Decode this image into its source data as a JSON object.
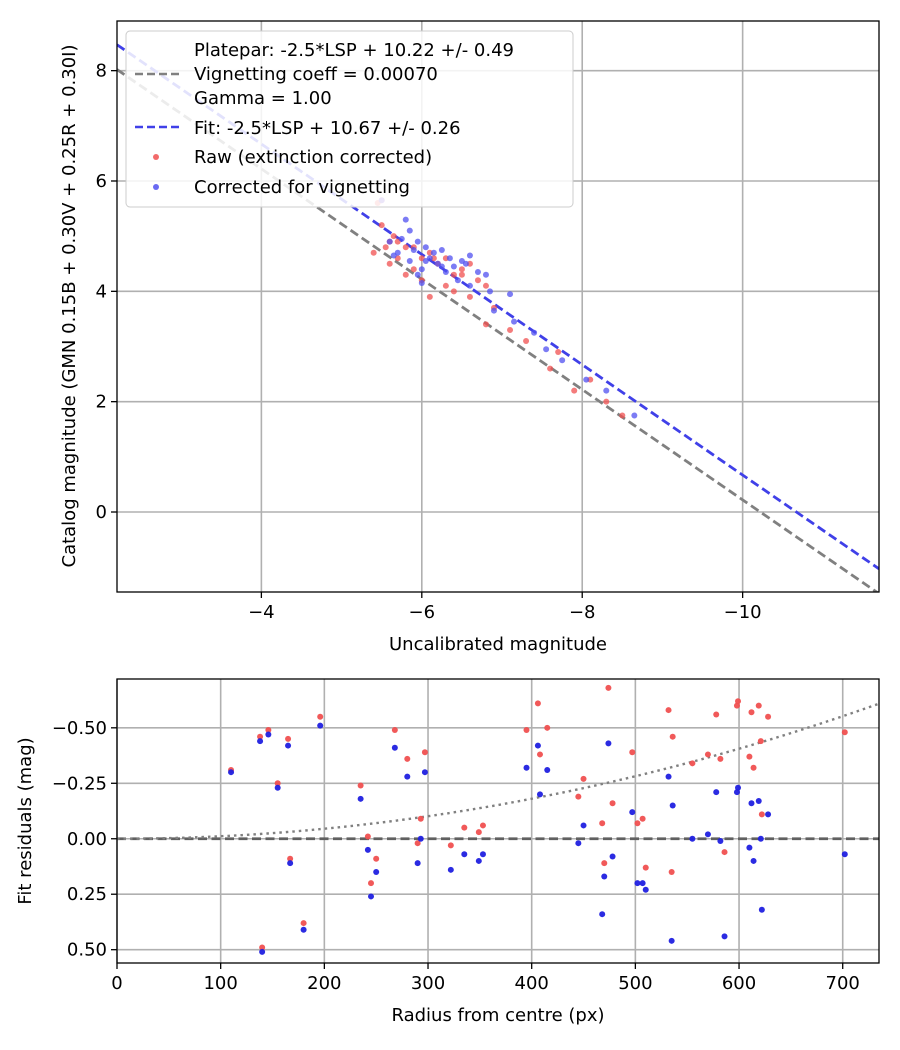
{
  "chart_data": [
    {
      "type": "scatter",
      "xlabel": "Uncalibrated magnitude",
      "ylabel": "Catalog magnitude (GMN 0.15B + 0.30V + 0.25R + 0.30I)",
      "xlim": [
        -2.2,
        -11.7
      ],
      "ylim": [
        8.9,
        -1.45
      ],
      "x_inverted": true,
      "y_inverted": true,
      "grid": true,
      "xticks": [
        -4,
        -6,
        -8,
        -10
      ],
      "xtick_labels": [
        "−4",
        "−6",
        "−8",
        "−10"
      ],
      "yticks": [
        0,
        2,
        4,
        6,
        8
      ],
      "ytick_labels": [
        "0",
        "2",
        "4",
        "6",
        "8"
      ],
      "legend_position": "top-left",
      "legend": {
        "platepar_lines": [
          "Platepar: -2.5*LSP + 10.22 +/- 0.49",
          "Vignetting coeff = 0.00070",
          "Gamma = 1.00"
        ],
        "fit": "Fit: -2.5*LSP + 10.67 +/- 0.26",
        "raw": "Raw (extinction corrected)",
        "corrected": "Corrected for vignetting"
      },
      "lines": [
        {
          "name": "Platepar",
          "slope": 1.0,
          "intercept": 10.22,
          "color": "#808080",
          "style": "dashed"
        },
        {
          "name": "Fit",
          "slope": 1.0,
          "intercept": 10.67,
          "color": "#4040e8",
          "style": "dashed"
        }
      ],
      "series": [
        {
          "name": "Raw (extinction corrected)",
          "color": "#f05050",
          "points": [
            [
              -8.5,
              1.75
            ],
            [
              -8.3,
              2.0
            ],
            [
              -7.9,
              2.2
            ],
            [
              -8.1,
              2.4
            ],
            [
              -7.6,
              2.6
            ],
            [
              -7.7,
              2.9
            ],
            [
              -7.3,
              3.1
            ],
            [
              -7.1,
              3.3
            ],
            [
              -6.8,
              3.4
            ],
            [
              -6.9,
              3.7
            ],
            [
              -6.6,
              3.9
            ],
            [
              -6.4,
              4.0
            ],
            [
              -6.7,
              4.2
            ],
            [
              -6.5,
              4.3
            ],
            [
              -6.3,
              4.1
            ],
            [
              -6.1,
              3.9
            ],
            [
              -6.0,
              4.2
            ],
            [
              -5.9,
              4.4
            ],
            [
              -5.8,
              4.3
            ],
            [
              -5.7,
              4.6
            ],
            [
              -5.6,
              4.5
            ],
            [
              -5.55,
              4.8
            ],
            [
              -5.4,
              4.7
            ],
            [
              -5.5,
              5.2
            ],
            [
              -5.6,
              4.9
            ],
            [
              -5.7,
              4.9
            ],
            [
              -5.9,
              4.8
            ],
            [
              -6.0,
              4.6
            ],
            [
              -6.2,
              4.5
            ],
            [
              -6.3,
              4.6
            ],
            [
              -6.5,
              4.4
            ],
            [
              -6.8,
              4.1
            ],
            [
              -5.45,
              5.6
            ],
            [
              -5.5,
              5.65
            ],
            [
              -6.1,
              4.7
            ],
            [
              -5.65,
              5.0
            ],
            [
              -6.6,
              4.5
            ],
            [
              -5.8,
              4.8
            ],
            [
              -6.4,
              4.3
            ],
            [
              -6.15,
              4.6
            ]
          ]
        },
        {
          "name": "Corrected for vignetting",
          "color": "#5050f0",
          "points": [
            [
              -8.65,
              1.75
            ],
            [
              -8.3,
              2.2
            ],
            [
              -8.05,
              2.4
            ],
            [
              -7.75,
              2.75
            ],
            [
              -7.55,
              2.95
            ],
            [
              -7.4,
              3.25
            ],
            [
              -7.15,
              3.45
            ],
            [
              -6.9,
              3.65
            ],
            [
              -6.85,
              4.0
            ],
            [
              -7.1,
              3.95
            ],
            [
              -6.6,
              4.1
            ],
            [
              -6.7,
              4.35
            ],
            [
              -6.45,
              4.2
            ],
            [
              -6.3,
              4.35
            ],
            [
              -6.55,
              4.5
            ],
            [
              -6.2,
              4.5
            ],
            [
              -6.0,
              4.4
            ],
            [
              -5.85,
              4.55
            ],
            [
              -5.7,
              4.7
            ],
            [
              -5.9,
              4.75
            ],
            [
              -6.05,
              4.8
            ],
            [
              -5.75,
              4.95
            ],
            [
              -5.6,
              4.9
            ],
            [
              -6.1,
              4.6
            ],
            [
              -6.35,
              4.6
            ],
            [
              -6.5,
              4.55
            ],
            [
              -5.95,
              4.9
            ],
            [
              -6.15,
              4.7
            ],
            [
              -5.5,
              5.65
            ],
            [
              -5.8,
              5.3
            ],
            [
              -6.0,
              4.15
            ],
            [
              -6.4,
              4.45
            ],
            [
              -5.65,
              4.65
            ],
            [
              -6.25,
              4.75
            ],
            [
              -6.8,
              4.3
            ],
            [
              -5.85,
              5.1
            ],
            [
              -6.05,
              4.55
            ],
            [
              -6.6,
              4.65
            ],
            [
              -5.95,
              4.3
            ],
            [
              -6.25,
              4.45
            ]
          ]
        }
      ]
    },
    {
      "type": "scatter",
      "xlabel": "Radius from centre (px)",
      "ylabel": "Fit residuals (mag)",
      "xlim": [
        0,
        735
      ],
      "ylim": [
        -0.72,
        0.56
      ],
      "grid": true,
      "xticks": [
        0,
        100,
        200,
        300,
        400,
        500,
        600,
        700
      ],
      "xtick_labels": [
        "0",
        "100",
        "200",
        "300",
        "400",
        "500",
        "600",
        "700"
      ],
      "yticks": [
        0.5,
        0.25,
        0.0,
        -0.25,
        -0.5
      ],
      "ytick_labels": [
        "0.50",
        "0.25",
        "0.00",
        "−0.25",
        "−0.50"
      ],
      "lines": [
        {
          "name": "Zero",
          "type": "hline",
          "y": 0.0,
          "color": "#606060",
          "style": "dashed"
        },
        {
          "name": "Vignetting curve",
          "type": "curve",
          "coeff": 0.0007,
          "color": "#808080",
          "style": "dotted"
        }
      ],
      "series": [
        {
          "name": "Raw (extinction corrected)",
          "color": "#f05050",
          "points": [
            [
              110,
              -0.31
            ],
            [
              138,
              -0.46
            ],
            [
              140,
              0.49
            ],
            [
              146,
              -0.49
            ],
            [
              155,
              -0.25
            ],
            [
              165,
              -0.45
            ],
            [
              167,
              0.09
            ],
            [
              180,
              0.38
            ],
            [
              196,
              -0.55
            ],
            [
              235,
              -0.24
            ],
            [
              242,
              -0.01
            ],
            [
              245,
              0.2
            ],
            [
              250,
              0.09
            ],
            [
              268,
              -0.49
            ],
            [
              280,
              -0.36
            ],
            [
              290,
              0.02
            ],
            [
              293,
              -0.09
            ],
            [
              297,
              -0.39
            ],
            [
              322,
              0.03
            ],
            [
              335,
              -0.05
            ],
            [
              349,
              -0.03
            ],
            [
              353,
              -0.06
            ],
            [
              395,
              -0.49
            ],
            [
              406,
              -0.61
            ],
            [
              408,
              -0.38
            ],
            [
              415,
              -0.5
            ],
            [
              445,
              -0.19
            ],
            [
              450,
              -0.27
            ],
            [
              468,
              -0.07
            ],
            [
              470,
              0.11
            ],
            [
              474,
              -0.68
            ],
            [
              478,
              -0.16
            ],
            [
              497,
              -0.39
            ],
            [
              502,
              -0.07
            ],
            [
              507,
              -0.09
            ],
            [
              510,
              0.13
            ],
            [
              532,
              -0.58
            ],
            [
              535,
              0.15
            ],
            [
              536,
              -0.46
            ],
            [
              555,
              -0.34
            ],
            [
              570,
              -0.38
            ],
            [
              578,
              -0.56
            ],
            [
              582,
              -0.36
            ],
            [
              586,
              0.06
            ],
            [
              598,
              -0.6
            ],
            [
              599,
              -0.62
            ],
            [
              610,
              -0.37
            ],
            [
              612,
              -0.57
            ],
            [
              614,
              -0.32
            ],
            [
              619,
              -0.6
            ],
            [
              621,
              -0.44
            ],
            [
              622,
              -0.11
            ],
            [
              628,
              -0.55
            ],
            [
              702,
              -0.48
            ]
          ]
        },
        {
          "name": "Corrected for vignetting",
          "color": "#2020e0",
          "points": [
            [
              110,
              -0.3
            ],
            [
              138,
              -0.44
            ],
            [
              140,
              0.51
            ],
            [
              146,
              -0.47
            ],
            [
              155,
              -0.23
            ],
            [
              165,
              -0.42
            ],
            [
              167,
              0.11
            ],
            [
              180,
              0.41
            ],
            [
              196,
              -0.51
            ],
            [
              235,
              -0.18
            ],
            [
              242,
              0.05
            ],
            [
              245,
              0.26
            ],
            [
              250,
              0.15
            ],
            [
              268,
              -0.41
            ],
            [
              280,
              -0.28
            ],
            [
              290,
              0.11
            ],
            [
              293,
              0.0
            ],
            [
              297,
              -0.3
            ],
            [
              322,
              0.14
            ],
            [
              335,
              0.07
            ],
            [
              349,
              0.1
            ],
            [
              353,
              0.07
            ],
            [
              395,
              -0.32
            ],
            [
              406,
              -0.42
            ],
            [
              408,
              -0.2
            ],
            [
              415,
              -0.31
            ],
            [
              445,
              0.02
            ],
            [
              450,
              -0.06
            ],
            [
              468,
              0.34
            ],
            [
              470,
              0.17
            ],
            [
              474,
              -0.43
            ],
            [
              478,
              0.08
            ],
            [
              497,
              -0.12
            ],
            [
              502,
              0.2
            ],
            [
              507,
              0.2
            ],
            [
              510,
              0.23
            ],
            [
              532,
              -0.28
            ],
            [
              535,
              0.46
            ],
            [
              536,
              -0.15
            ],
            [
              555,
              0.0
            ],
            [
              570,
              -0.02
            ],
            [
              578,
              -0.21
            ],
            [
              582,
              0.01
            ],
            [
              586,
              0.44
            ],
            [
              598,
              -0.21
            ],
            [
              599,
              -0.23
            ],
            [
              610,
              0.04
            ],
            [
              612,
              -0.16
            ],
            [
              614,
              0.1
            ],
            [
              619,
              -0.17
            ],
            [
              621,
              -0.0
            ],
            [
              622,
              0.32
            ],
            [
              628,
              -0.11
            ],
            [
              702,
              0.07
            ]
          ]
        }
      ]
    }
  ]
}
